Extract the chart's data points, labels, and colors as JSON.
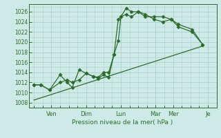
{
  "background_color": "#ceeae6",
  "grid_color": "#aacfca",
  "line_color": "#2d6b2d",
  "ylim": [
    1007,
    1027.5
  ],
  "ytick_vals": [
    1008,
    1010,
    1012,
    1014,
    1016,
    1018,
    1020,
    1022,
    1024,
    1026
  ],
  "xlabel": "Pression niveau de la mer( hPa )",
  "xtick_positions": [
    1.0,
    3.0,
    5.0,
    7.0,
    8.0,
    10.0
  ],
  "xtick_labels": [
    "Ven",
    "Dim",
    "Lun",
    "Mar",
    "Mer",
    "Je"
  ],
  "xlim": [
    -0.3,
    10.5
  ],
  "line1_x": [
    0.0,
    0.4,
    0.9,
    1.5,
    1.9,
    2.2,
    2.6,
    3.0,
    3.4,
    3.7,
    4.0,
    4.3,
    4.6,
    4.85,
    5.0,
    5.3,
    5.6,
    6.0,
    6.4,
    6.9,
    7.4,
    7.9,
    8.3,
    9.1,
    9.7
  ],
  "line1_y": [
    1011.5,
    1011.5,
    1010.5,
    1013.5,
    1012.0,
    1011.0,
    1014.5,
    1013.8,
    1013.2,
    1012.8,
    1013.5,
    1013.0,
    1017.5,
    1020.2,
    1025.0,
    1026.7,
    1026.0,
    1026.0,
    1025.0,
    1025.0,
    1025.0,
    1024.5,
    1023.5,
    1022.5,
    1019.5
  ],
  "line2_x": [
    0.0,
    0.4,
    0.9,
    1.5,
    1.9,
    2.2,
    2.6,
    3.0,
    3.4,
    3.7,
    4.0,
    4.3,
    4.6,
    4.85,
    5.0,
    5.3,
    5.6,
    6.0,
    6.4,
    6.9,
    7.4,
    7.9,
    8.3,
    9.1,
    9.7
  ],
  "line2_y": [
    1011.5,
    1011.5,
    1010.5,
    1012.0,
    1012.5,
    1012.0,
    1012.5,
    1013.8,
    1013.2,
    1013.0,
    1014.0,
    1014.0,
    1017.5,
    1024.5,
    1025.0,
    1025.5,
    1025.0,
    1026.0,
    1025.5,
    1024.5,
    1024.0,
    1024.5,
    1023.0,
    1022.0,
    1019.5
  ],
  "line3_x": [
    0.0,
    9.7
  ],
  "line3_y": [
    1008.5,
    1019.2
  ]
}
